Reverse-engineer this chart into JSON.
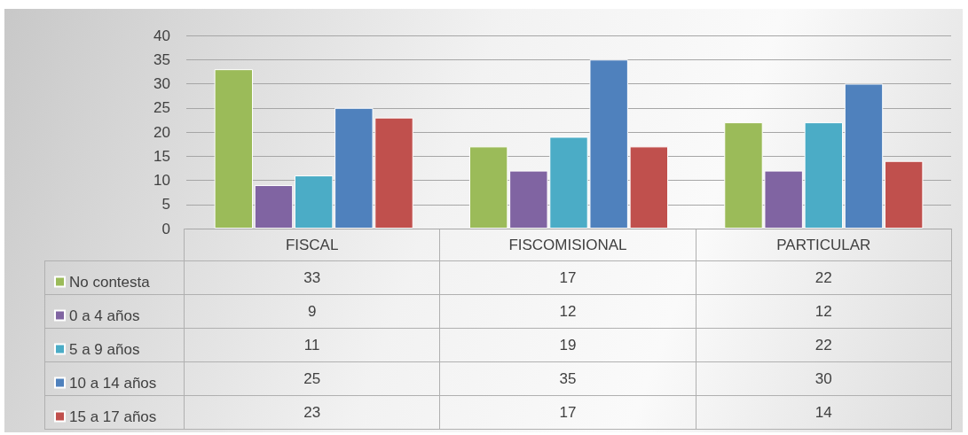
{
  "chart_data": {
    "type": "bar",
    "categories": [
      "FISCAL",
      "FISCOMISIONAL",
      "PARTICULAR"
    ],
    "series": [
      {
        "name": "No contesta",
        "color": "#9bbb59",
        "values": [
          33,
          17,
          22
        ]
      },
      {
        "name": "0 a 4 años",
        "color": "#8064a2",
        "values": [
          9,
          12,
          12
        ]
      },
      {
        "name": "5 a 9 años",
        "color": "#4bacc6",
        "values": [
          11,
          19,
          22
        ]
      },
      {
        "name": "10 a 14 años",
        "color": "#4f81bd",
        "values": [
          25,
          35,
          30
        ]
      },
      {
        "name": "15 a 17 años",
        "color": "#c0504d",
        "values": [
          23,
          17,
          14
        ]
      }
    ],
    "ylim": [
      0,
      40
    ],
    "yticks": [
      0,
      5,
      10,
      15,
      20,
      25,
      30,
      35,
      40
    ],
    "grid": "y",
    "legend": "bottom",
    "data_labels": true
  }
}
